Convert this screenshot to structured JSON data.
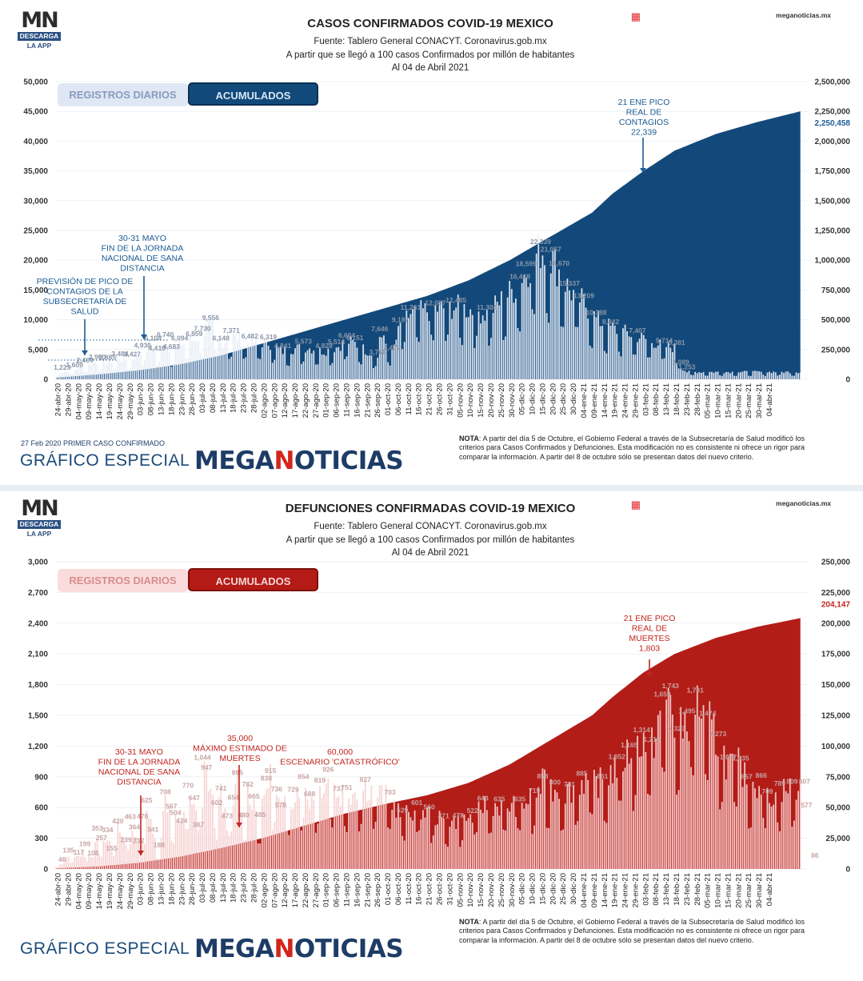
{
  "logo": {
    "mark": "MN",
    "badge": "DESCARGA",
    "sub": "LA APP"
  },
  "site": "meganoticias.mx",
  "footer": {
    "brand_label": "GRÁFICO ESPECIAL",
    "brand_a": "MEGA",
    "brand_b": "N",
    "brand_c": "OTICIAS",
    "note_bold": "NOTA",
    "note_text": ": A partir del día 5 de Octubre, el Gobierno Federal a través de la Subsecretaría de Salud modificó los criterios para Casos Confirmados y Defunciones. Esta modificación no es consistente ni ofrece un rigor para comparar la información. A partir del 8 de octubre sólo se presentan datos del nuevo criterio."
  },
  "date_ticks": [
    "24-abr-20",
    "29-abr-20",
    "04-may-20",
    "09-may-20",
    "14-may-20",
    "19-may-20",
    "24-may-20",
    "29-may-20",
    "03-jun-20",
    "08-jun-20",
    "13-jun-20",
    "18-jun-20",
    "23-jun-20",
    "28-jun-20",
    "03-jul-20",
    "08-jul-20",
    "13-jul-20",
    "18-jul-20",
    "23-jul-20",
    "28-jul-20",
    "02-ago-20",
    "07-ago-20",
    "12-ago-20",
    "17-ago-20",
    "22-ago-20",
    "27-ago-20",
    "01-sep-20",
    "06-sep-20",
    "11-sep-20",
    "16-sep-20",
    "21-sep-20",
    "26-sep-20",
    "01-oct-20",
    "06-oct-20",
    "11-oct-20",
    "16-oct-20",
    "21-oct-20",
    "26-oct-20",
    "31-oct-20",
    "05-nov-20",
    "10-nov-20",
    "15-nov-20",
    "20-nov-20",
    "25-nov-20",
    "30-nov-20",
    "05-dic-20",
    "10-dic-20",
    "15-dic-20",
    "20-dic-20",
    "25-dic-20",
    "30-dic-20",
    "04-ene-21",
    "09-ene-21",
    "14-ene-21",
    "19-ene-21",
    "24-ene-21",
    "29-ene-21",
    "03-feb-21",
    "08-feb-21",
    "13-feb-21",
    "18-feb-21",
    "23-feb-21",
    "28-feb-21",
    "05-mar-21",
    "10-mar-21",
    "15-mar-21",
    "20-mar-21",
    "25-mar-21",
    "30-mar-21",
    "04-abr-21"
  ],
  "chart_data": [
    {
      "type": "bar",
      "title": "CASOS CONFIRMADOS COVID-19 MEXICO",
      "subtitle_lines": [
        "Fuente: Tablero General CONACYT. Coronavirus.gob.mx",
        "A partir que se llegó a 100 casos Confirmados por millón de habitantes",
        "Al 04 de Abril 2021"
      ],
      "buttons": [
        "REGISTROS DIARIOS",
        "ACUMULADOS"
      ],
      "first_case": "27 Feb 2020 PRIMER CASO CONFIRMADO",
      "left_ticks": [
        "0",
        "5,000",
        "10,000",
        "15,000",
        "20,000",
        "25,000",
        "30,000",
        "35,000",
        "40,000",
        "45,000",
        "50,000"
      ],
      "right_ticks": [
        "0",
        "250,000",
        "500,000",
        "750,000",
        "1,000,000",
        "1,250,000",
        "1,500,000",
        "1,750,000",
        "2,000,000",
        "2,250,000",
        "2,500,000"
      ],
      "ylim_left": [
        0,
        50000
      ],
      "ylim_right": [
        0,
        2500000
      ],
      "cumulative_final": "2,250,458",
      "cumulative_points": [
        [
          0,
          14000
        ],
        [
          20,
          40000
        ],
        [
          40,
          75000
        ],
        [
          60,
          125000
        ],
        [
          80,
          200000
        ],
        [
          100,
          300000
        ],
        [
          120,
          400000
        ],
        [
          140,
          500000
        ],
        [
          160,
          600000
        ],
        [
          180,
          700000
        ],
        [
          200,
          830000
        ],
        [
          220,
          1000000
        ],
        [
          240,
          1200000
        ],
        [
          260,
          1400000
        ],
        [
          270,
          1560000
        ],
        [
          285,
          1750000
        ],
        [
          300,
          1920000
        ],
        [
          320,
          2060000
        ],
        [
          340,
          2160000
        ],
        [
          361,
          2250458
        ]
      ],
      "daily_labels": [
        [
          "1,223",
          3
        ],
        [
          "1,609",
          9
        ],
        [
          "2,409",
          14
        ],
        [
          "2,960",
          20
        ],
        [
          "2,885",
          25
        ],
        [
          "3,484",
          31
        ],
        [
          "3,427",
          37
        ],
        [
          "4,930",
          42
        ],
        [
          "6,104",
          47
        ],
        [
          "4,410",
          49
        ],
        [
          "6,740",
          53
        ],
        [
          "4,683",
          56
        ],
        [
          "6,094",
          60
        ],
        [
          "6,859",
          67
        ],
        [
          "7,730",
          71
        ],
        [
          "9,556",
          75
        ],
        [
          "6,148",
          80
        ],
        [
          "7,371",
          85
        ],
        [
          "6,482",
          94
        ],
        [
          "6,319",
          103
        ],
        [
          "4,841",
          110
        ],
        [
          "5,573",
          120
        ],
        [
          "4,828",
          130
        ],
        [
          "5,514",
          136
        ],
        [
          "6,604",
          141
        ],
        [
          "6,151",
          145
        ],
        [
          "7,646",
          157
        ],
        [
          "3,766",
          156
        ],
        [
          "4,472",
          163
        ],
        [
          "9,187",
          167
        ],
        [
          "11,261",
          172
        ],
        [
          "12,057",
          184
        ],
        [
          "12,485",
          194
        ],
        [
          "11,304",
          209
        ],
        [
          "16,468",
          225
        ],
        [
          "18,599",
          228
        ],
        [
          "22,339",
          235
        ],
        [
          "21,057",
          240
        ],
        [
          "18,670",
          244
        ],
        [
          "15,337",
          249
        ],
        [
          "13,209",
          256
        ],
        [
          "10,388",
          262
        ],
        [
          "8,842",
          269
        ],
        [
          "7,407",
          282
        ],
        [
          "5,714",
          295
        ],
        [
          "5,381",
          301
        ],
        [
          "2,089",
          303
        ],
        [
          "1,253",
          306
        ]
      ],
      "annotations": [
        {
          "lines": [
            "21 ENE PICO",
            "REAL DE",
            "CONTAGIOS",
            "22,339"
          ]
        },
        {
          "lines": [
            "30-31 MAYO",
            "FIN DE LA JORNADA",
            "NACIONAL DE SANA",
            "DISTANCIA"
          ]
        },
        {
          "lines": [
            "PREVISIÓN DE PICO DE",
            "CONTAGIOS DE LA",
            "SUBSECRETARÍA DE",
            "SALUD"
          ]
        }
      ],
      "colors": {
        "area": "#13497a",
        "bar": "#e8eef6",
        "label": "#8a96a8",
        "accent": "#1c5c94"
      }
    },
    {
      "type": "bar",
      "title": "DEFUNCIONES CONFIRMADAS COVID-19 MEXICO",
      "subtitle_lines": [
        "Fuente: Tablero General CONACYT. Coronavirus.gob.mx",
        "A partir que se llegó a 100 casos Confirmados por millón de habitantes",
        "Al 04 de Abril 2021"
      ],
      "buttons": [
        "REGISTROS DIARIOS",
        "ACUMULADOS"
      ],
      "left_ticks": [
        "0",
        "300",
        "600",
        "900",
        "1,200",
        "1,500",
        "1,800",
        "2,100",
        "2,400",
        "2,700",
        "3,000"
      ],
      "right_ticks": [
        "0",
        "25,000",
        "50,000",
        "75,000",
        "100,000",
        "125,000",
        "150,000",
        "175,000",
        "200,000",
        "225,000",
        "250,000"
      ],
      "ylim_left": [
        0,
        3000
      ],
      "ylim_right": [
        0,
        250000
      ],
      "cumulative_final": "204,147",
      "cumulative_points": [
        [
          0,
          600
        ],
        [
          20,
          2000
        ],
        [
          40,
          5000
        ],
        [
          60,
          10000
        ],
        [
          80,
          17000
        ],
        [
          100,
          25000
        ],
        [
          120,
          35000
        ],
        [
          140,
          45000
        ],
        [
          160,
          53000
        ],
        [
          180,
          60000
        ],
        [
          200,
          70000
        ],
        [
          220,
          85000
        ],
        [
          240,
          105000
        ],
        [
          260,
          125000
        ],
        [
          270,
          140000
        ],
        [
          285,
          160000
        ],
        [
          300,
          175000
        ],
        [
          320,
          188000
        ],
        [
          340,
          197000
        ],
        [
          361,
          204147
        ]
      ],
      "daily_labels": [
        [
          "46",
          3
        ],
        [
          "135",
          6
        ],
        [
          "117",
          11
        ],
        [
          "199",
          14
        ],
        [
          "108",
          18
        ],
        [
          "353",
          20
        ],
        [
          "257",
          22
        ],
        [
          "334",
          25
        ],
        [
          "155",
          27
        ],
        [
          "420",
          30
        ],
        [
          "239",
          34
        ],
        [
          "463",
          36
        ],
        [
          "364",
          38
        ],
        [
          "470",
          42
        ],
        [
          "232",
          40
        ],
        [
          "625",
          44
        ],
        [
          "341",
          47
        ],
        [
          "188",
          50
        ],
        [
          "708",
          53
        ],
        [
          "567",
          56
        ],
        [
          "504",
          58
        ],
        [
          "424",
          61
        ],
        [
          "770",
          64
        ],
        [
          "647",
          67
        ],
        [
          "387",
          69
        ],
        [
          "1,044",
          71
        ],
        [
          "947",
          73
        ],
        [
          "602",
          78
        ],
        [
          "741",
          80
        ],
        [
          "473",
          83
        ],
        [
          "654",
          86
        ],
        [
          "895",
          88
        ],
        [
          "480",
          91
        ],
        [
          "782",
          93
        ],
        [
          "665",
          96
        ],
        [
          "485",
          99
        ],
        [
          "915",
          104
        ],
        [
          "838",
          102
        ],
        [
          "736",
          107
        ],
        [
          "578",
          109
        ],
        [
          "729",
          115
        ],
        [
          "854",
          120
        ],
        [
          "688",
          123
        ],
        [
          "819",
          128
        ],
        [
          "926",
          132
        ],
        [
          "737",
          137
        ],
        [
          "751",
          141
        ],
        [
          "827",
          150
        ],
        [
          "703",
          162
        ],
        [
          "529",
          168
        ],
        [
          "601",
          175
        ],
        [
          "560",
          181
        ],
        [
          "471",
          188
        ],
        [
          "478",
          195
        ],
        [
          "522",
          202
        ],
        [
          "643",
          207
        ],
        [
          "635",
          215
        ],
        [
          "635",
          225
        ],
        [
          "719",
          232
        ],
        [
          "858",
          236
        ],
        [
          "800",
          242
        ],
        [
          "781",
          249
        ],
        [
          "885",
          255
        ],
        [
          "861",
          265
        ],
        [
          "1,052",
          272
        ],
        [
          "1,165",
          278
        ],
        [
          "1,314",
          284
        ],
        [
          "1,219",
          289
        ],
        [
          "1,659",
          294
        ],
        [
          "1,743",
          298
        ],
        [
          "1,323",
          301
        ],
        [
          "1,495",
          306
        ],
        [
          "1,701",
          310
        ],
        [
          "1,474",
          316
        ],
        [
          "1,273",
          321
        ],
        [
          "1,047",
          326
        ],
        [
          "1,035",
          332
        ],
        [
          "857",
          335
        ],
        [
          "866",
          342
        ],
        [
          "709",
          345
        ],
        [
          "789",
          351
        ],
        [
          "809",
          357
        ],
        [
          "807",
          363
        ],
        [
          "577",
          364
        ],
        [
          "86",
          368
        ]
      ],
      "annotations": [
        {
          "lines": [
            "21 ENE PICO",
            "REAL DE",
            "MUERTES",
            "1,803"
          ]
        },
        {
          "lines": [
            "30-31 MAYO",
            "FIN DE LA JORNADA",
            "NACIONAL DE SANA",
            "DISTANCIA"
          ]
        },
        {
          "lines": [
            "35,000",
            "MÁXIMO ESTIMADO DE",
            "MUERTES"
          ]
        },
        {
          "lines": [
            "60,000",
            "ESCENARIO 'CATASTRÓFICO'"
          ]
        }
      ],
      "colors": {
        "area": "#b31d18",
        "bar": "#f7d3d2",
        "label": "#c7a4a3",
        "accent": "#c0261f"
      }
    }
  ]
}
